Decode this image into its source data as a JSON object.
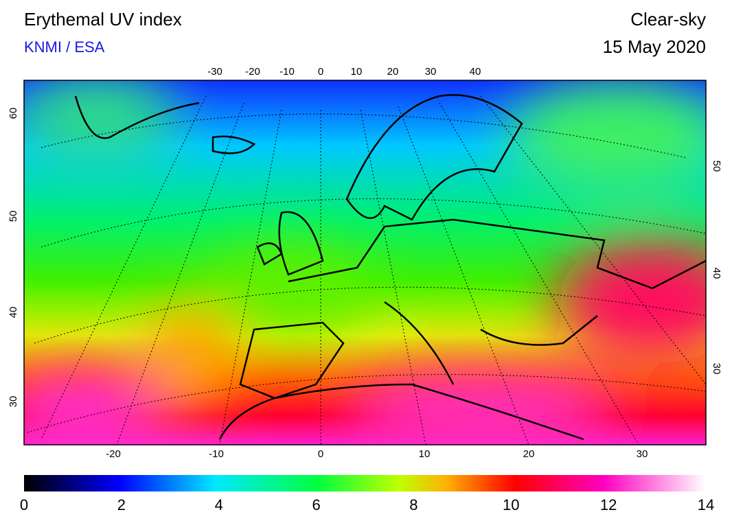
{
  "header": {
    "title": "Erythemal UV index",
    "source": "KNMI / ESA",
    "sky": "Clear-sky",
    "date": "15 May 2020"
  },
  "map": {
    "top_ticks": [
      -30,
      -20,
      -10,
      0,
      10,
      20,
      30,
      40
    ],
    "bottom_ticks": [
      -20,
      -10,
      0,
      10,
      20,
      30
    ],
    "left_ticks": [
      60,
      50,
      40,
      30
    ],
    "right_ticks": [
      50,
      40,
      30
    ]
  },
  "colorbar": {
    "ticks": [
      0,
      2,
      4,
      6,
      8,
      10,
      12,
      14
    ]
  }
}
